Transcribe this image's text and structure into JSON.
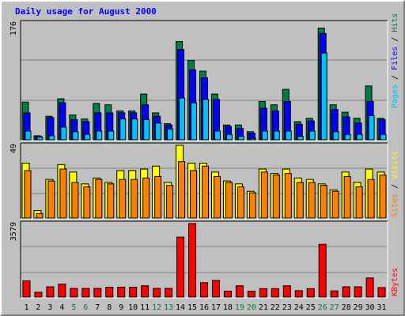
{
  "chart_data": [
    {
      "title": "Daily usage for August 2000",
      "type": "bar",
      "categories": [
        "1",
        "2",
        "3",
        "4",
        "5",
        "6",
        "7",
        "8",
        "9",
        "10",
        "11",
        "12",
        "13",
        "14",
        "15",
        "16",
        "17",
        "18",
        "19",
        "20",
        "21",
        "22",
        "23",
        "24",
        "25",
        "26",
        "27",
        "28",
        "29",
        "30",
        "31"
      ],
      "weekend_days": [
        "5",
        "6",
        "12",
        "13",
        "19",
        "20",
        "26",
        "27"
      ],
      "ymax_label": "176",
      "ylim": [
        0,
        176
      ],
      "legend": [
        "Pages",
        "Files",
        "Hits"
      ],
      "series": [
        {
          "name": "Hits",
          "color": "#008040",
          "values": [
            56,
            6,
            35,
            61,
            37,
            31,
            54,
            52,
            43,
            43,
            68,
            40,
            24,
            146,
            118,
            102,
            68,
            22,
            22,
            12,
            57,
            52,
            75,
            27,
            32,
            166,
            52,
            41,
            32,
            80,
            32
          ]
        },
        {
          "name": "Files",
          "color": "#0000ff",
          "values": [
            40,
            5,
            33,
            55,
            30,
            27,
            40,
            40,
            40,
            40,
            52,
            35,
            22,
            134,
            104,
            92,
            60,
            20,
            17,
            10,
            47,
            43,
            57,
            23,
            28,
            158,
            45,
            34,
            25,
            57,
            30
          ]
        },
        {
          "name": "Pages",
          "color": "#00c0ff",
          "values": [
            13,
            4,
            6,
            19,
            12,
            8,
            13,
            13,
            31,
            31,
            30,
            25,
            16,
            62,
            55,
            60,
            13,
            8,
            5,
            2,
            13,
            13,
            13,
            5,
            13,
            129,
            12,
            8,
            8,
            36,
            8
          ]
        }
      ]
    },
    {
      "type": "bar",
      "ymax_label": "49",
      "ylim": [
        0,
        49
      ],
      "legend": [
        "Sites",
        "Visits"
      ],
      "series": [
        {
          "name": "Visits",
          "color": "#ffff00",
          "values": [
            37,
            5,
            26,
            36,
            31,
            23,
            27,
            24,
            32,
            32,
            33,
            35,
            24,
            49,
            37,
            37,
            31,
            25,
            23,
            18,
            33,
            30,
            33,
            27,
            26,
            23,
            19,
            31,
            24,
            33,
            31
          ]
        },
        {
          "name": "Sites",
          "color": "#ff8000",
          "values": [
            32,
            3,
            25,
            33,
            24,
            21,
            26,
            23,
            26,
            26,
            27,
            28,
            22,
            38,
            32,
            35,
            28,
            24,
            21,
            17,
            31,
            29,
            30,
            24,
            24,
            22,
            18,
            28,
            21,
            26,
            29
          ]
        }
      ]
    },
    {
      "type": "bar",
      "ymax_label": "3579",
      "ylim": [
        0,
        3579
      ],
      "legend": [
        "KBytes"
      ],
      "series": [
        {
          "name": "KBytes",
          "color": "#ff0000",
          "values": [
            790,
            230,
            500,
            630,
            420,
            420,
            420,
            480,
            480,
            480,
            550,
            420,
            420,
            2920,
            3580,
            700,
            810,
            290,
            550,
            280,
            410,
            410,
            550,
            310,
            410,
            2570,
            300,
            500,
            500,
            930,
            460
          ]
        }
      ]
    }
  ]
}
